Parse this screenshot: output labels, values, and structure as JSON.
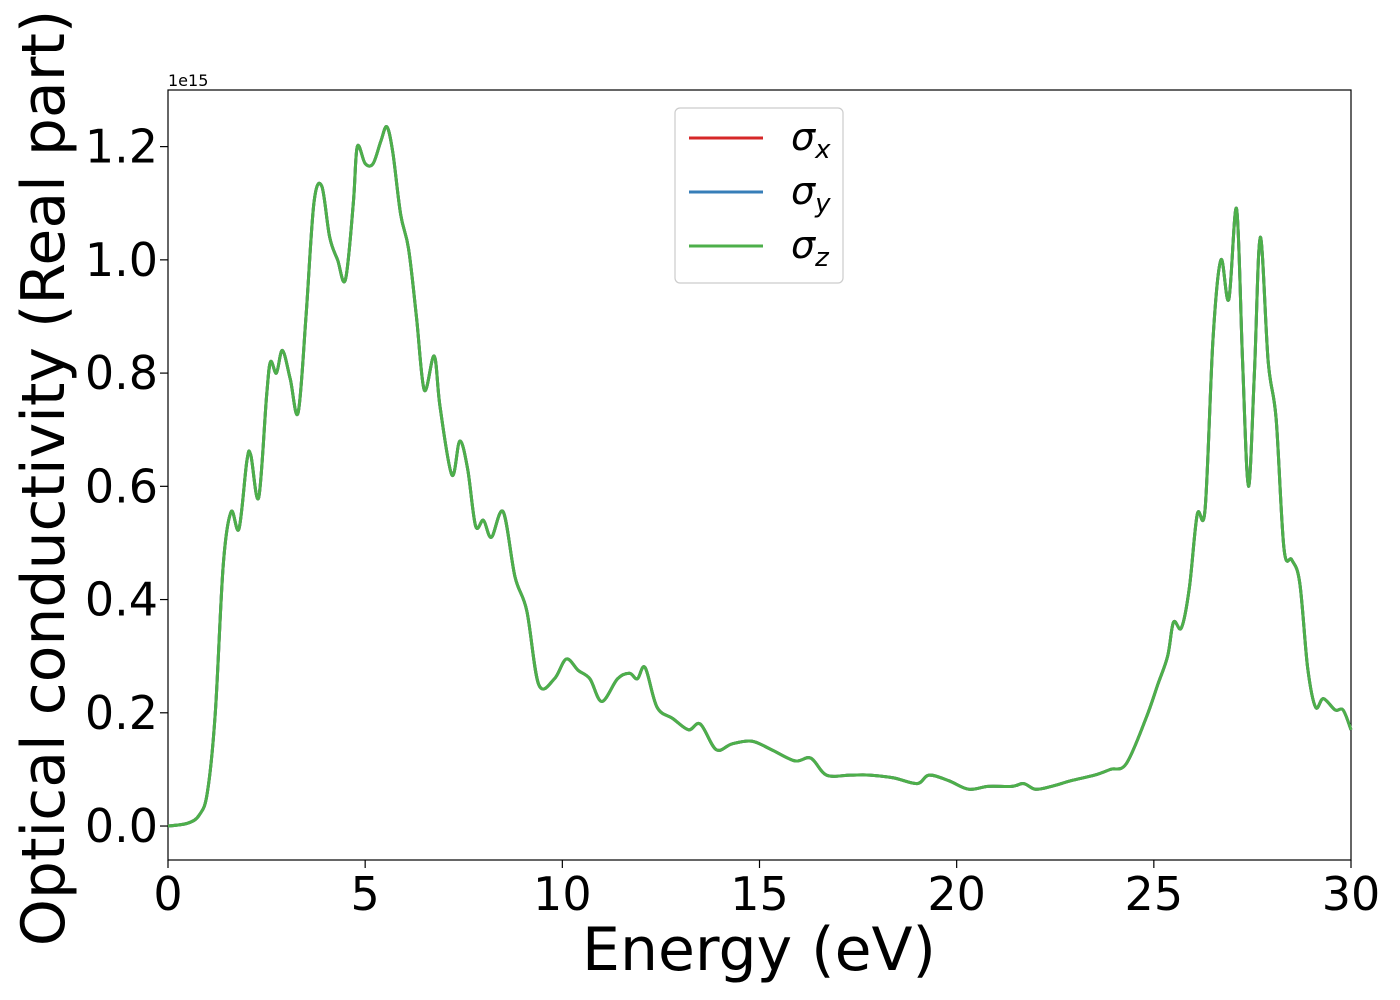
{
  "chart_data": {
    "type": "line",
    "xlabel": "Energy (eV)",
    "ylabel": "Optical conductivity (Real part)",
    "y_offset_label": "1e15",
    "xlim": [
      0,
      30
    ],
    "ylim": [
      -0.06,
      1.3
    ],
    "x_ticks": [
      0,
      5,
      10,
      15,
      20,
      25,
      30
    ],
    "x_tick_labels": [
      "0",
      "5",
      "10",
      "15",
      "20",
      "25",
      "30"
    ],
    "y_ticks": [
      0.0,
      0.2,
      0.4,
      0.6,
      0.8,
      1.0,
      1.2
    ],
    "y_tick_labels": [
      "0.0",
      "0.2",
      "0.4",
      "0.6",
      "0.8",
      "1.0",
      "1.2"
    ],
    "grid": false,
    "legend": {
      "position": "top-center"
    },
    "x": [
      0,
      0.5,
      0.8,
      1.0,
      1.2,
      1.4,
      1.6,
      1.8,
      2.0,
      2.1,
      2.3,
      2.5,
      2.6,
      2.75,
      2.9,
      3.1,
      3.3,
      3.5,
      3.7,
      3.9,
      4.1,
      4.3,
      4.5,
      4.7,
      4.8,
      5.0,
      5.2,
      5.4,
      5.55,
      5.7,
      5.9,
      6.1,
      6.3,
      6.5,
      6.75,
      6.9,
      7.2,
      7.4,
      7.6,
      7.8,
      8.0,
      8.2,
      8.5,
      8.8,
      9.1,
      9.4,
      9.8,
      10.1,
      10.4,
      10.7,
      11.0,
      11.4,
      11.7,
      11.9,
      12.1,
      12.4,
      12.8,
      13.2,
      13.5,
      13.9,
      14.3,
      14.8,
      15.3,
      15.9,
      16.3,
      16.7,
      17.3,
      17.8,
      18.4,
      19.0,
      19.3,
      19.8,
      20.3,
      20.8,
      21.4,
      21.7,
      22.0,
      22.4,
      22.9,
      23.5,
      23.9,
      24.3,
      24.8,
      25.1,
      25.35,
      25.5,
      25.7,
      25.9,
      26.1,
      26.3,
      26.5,
      26.7,
      26.9,
      27.1,
      27.25,
      27.4,
      27.55,
      27.7,
      27.9,
      28.1,
      28.3,
      28.5,
      28.7,
      28.9,
      29.1,
      29.3,
      29.6,
      29.8,
      30.0
    ],
    "series": [
      {
        "name": "σ_x",
        "label_main": "σ",
        "label_sub": "x",
        "color": "#d62728",
        "values": [
          0.0,
          0.005,
          0.02,
          0.06,
          0.2,
          0.46,
          0.555,
          0.525,
          0.645,
          0.655,
          0.58,
          0.76,
          0.82,
          0.8,
          0.84,
          0.79,
          0.73,
          0.9,
          1.1,
          1.13,
          1.04,
          1.0,
          0.965,
          1.1,
          1.2,
          1.17,
          1.17,
          1.21,
          1.235,
          1.19,
          1.08,
          1.02,
          0.9,
          0.77,
          0.83,
          0.74,
          0.62,
          0.68,
          0.63,
          0.53,
          0.54,
          0.51,
          0.555,
          0.44,
          0.38,
          0.25,
          0.26,
          0.295,
          0.275,
          0.26,
          0.22,
          0.26,
          0.27,
          0.26,
          0.28,
          0.21,
          0.19,
          0.17,
          0.18,
          0.135,
          0.145,
          0.15,
          0.135,
          0.115,
          0.12,
          0.09,
          0.09,
          0.09,
          0.085,
          0.075,
          0.09,
          0.08,
          0.065,
          0.07,
          0.07,
          0.075,
          0.065,
          0.07,
          0.08,
          0.09,
          0.1,
          0.11,
          0.19,
          0.25,
          0.3,
          0.36,
          0.35,
          0.42,
          0.55,
          0.56,
          0.86,
          1.0,
          0.93,
          1.09,
          0.82,
          0.6,
          0.8,
          1.04,
          0.82,
          0.72,
          0.49,
          0.47,
          0.43,
          0.28,
          0.21,
          0.225,
          0.205,
          0.205,
          0.17
        ]
      },
      {
        "name": "σ_y",
        "label_main": "σ",
        "label_sub": "y",
        "color": "#377eb8",
        "values": [
          0.0,
          0.005,
          0.02,
          0.06,
          0.2,
          0.46,
          0.555,
          0.525,
          0.645,
          0.655,
          0.58,
          0.76,
          0.82,
          0.8,
          0.84,
          0.79,
          0.73,
          0.9,
          1.1,
          1.13,
          1.04,
          1.0,
          0.965,
          1.1,
          1.2,
          1.17,
          1.17,
          1.21,
          1.235,
          1.19,
          1.08,
          1.02,
          0.9,
          0.77,
          0.83,
          0.74,
          0.62,
          0.68,
          0.63,
          0.53,
          0.54,
          0.51,
          0.555,
          0.44,
          0.38,
          0.25,
          0.26,
          0.295,
          0.275,
          0.26,
          0.22,
          0.26,
          0.27,
          0.26,
          0.28,
          0.21,
          0.19,
          0.17,
          0.18,
          0.135,
          0.145,
          0.15,
          0.135,
          0.115,
          0.12,
          0.09,
          0.09,
          0.09,
          0.085,
          0.075,
          0.09,
          0.08,
          0.065,
          0.07,
          0.07,
          0.075,
          0.065,
          0.07,
          0.08,
          0.09,
          0.1,
          0.11,
          0.19,
          0.25,
          0.3,
          0.36,
          0.35,
          0.42,
          0.55,
          0.56,
          0.86,
          1.0,
          0.93,
          1.09,
          0.82,
          0.6,
          0.8,
          1.04,
          0.82,
          0.72,
          0.49,
          0.47,
          0.43,
          0.28,
          0.21,
          0.225,
          0.205,
          0.205,
          0.17
        ]
      },
      {
        "name": "σ_z",
        "label_main": "σ",
        "label_sub": "z",
        "color": "#4daf4a",
        "values": [
          0.0,
          0.005,
          0.02,
          0.06,
          0.2,
          0.46,
          0.555,
          0.525,
          0.645,
          0.655,
          0.58,
          0.76,
          0.82,
          0.8,
          0.84,
          0.79,
          0.73,
          0.9,
          1.1,
          1.13,
          1.04,
          1.0,
          0.965,
          1.1,
          1.2,
          1.17,
          1.17,
          1.21,
          1.235,
          1.19,
          1.08,
          1.02,
          0.9,
          0.77,
          0.83,
          0.74,
          0.62,
          0.68,
          0.63,
          0.53,
          0.54,
          0.51,
          0.555,
          0.44,
          0.38,
          0.25,
          0.26,
          0.295,
          0.275,
          0.26,
          0.22,
          0.26,
          0.27,
          0.26,
          0.28,
          0.21,
          0.19,
          0.17,
          0.18,
          0.135,
          0.145,
          0.15,
          0.135,
          0.115,
          0.12,
          0.09,
          0.09,
          0.09,
          0.085,
          0.075,
          0.09,
          0.08,
          0.065,
          0.07,
          0.07,
          0.075,
          0.065,
          0.07,
          0.08,
          0.09,
          0.1,
          0.11,
          0.19,
          0.25,
          0.3,
          0.36,
          0.35,
          0.42,
          0.55,
          0.56,
          0.86,
          1.0,
          0.93,
          1.09,
          0.82,
          0.6,
          0.8,
          1.04,
          0.82,
          0.72,
          0.49,
          0.47,
          0.43,
          0.28,
          0.21,
          0.225,
          0.205,
          0.205,
          0.17
        ]
      }
    ]
  }
}
